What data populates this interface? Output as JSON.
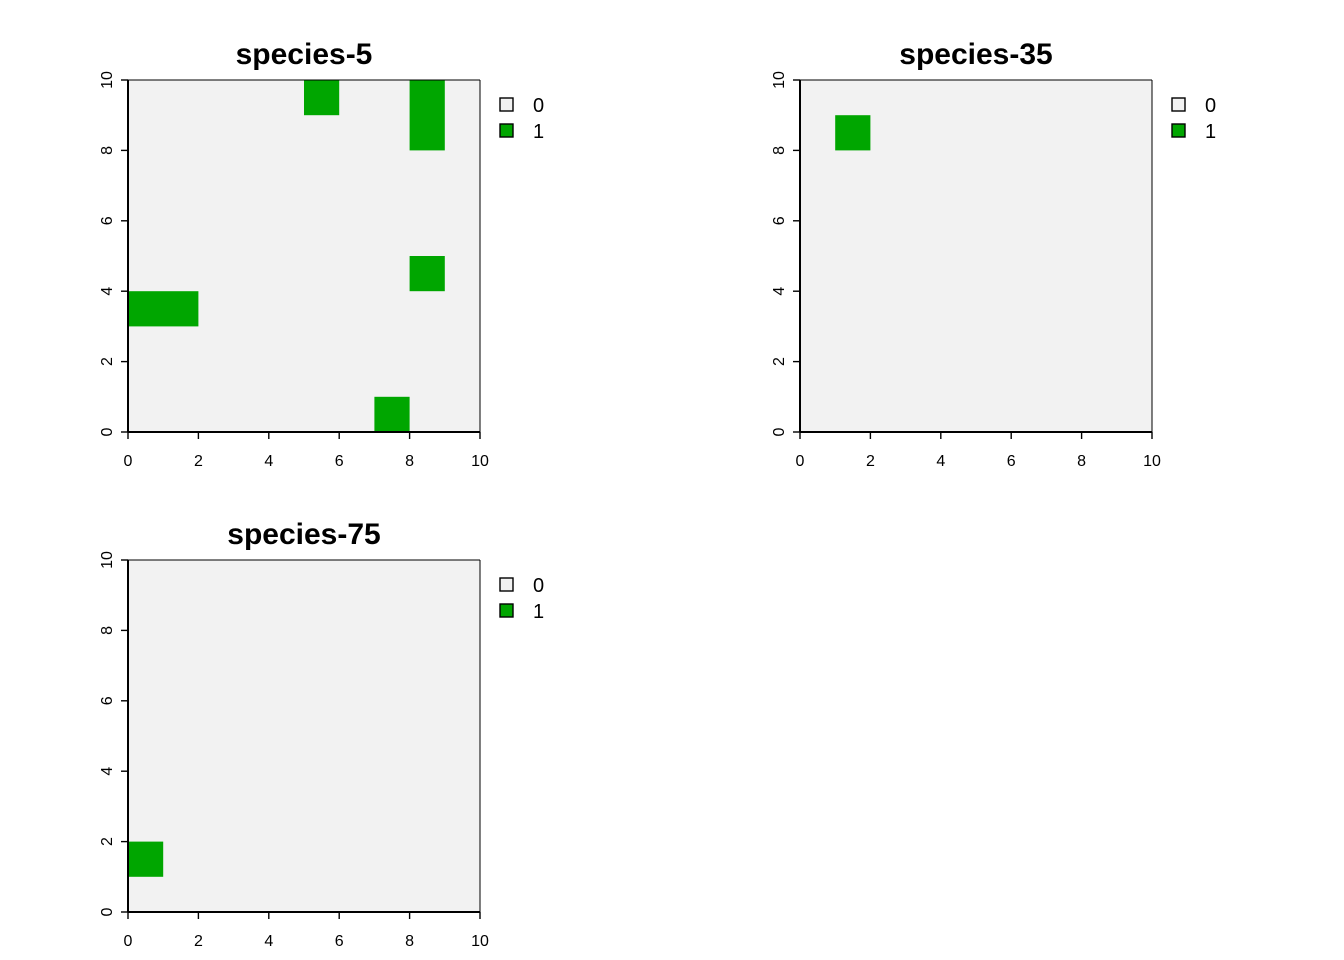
{
  "palette": {
    "absent": "#f2f2f2",
    "present": "#00a600",
    "panel_bg": "#f2f2f2"
  },
  "chart_data": [
    {
      "type": "heatmap",
      "title": "species-5",
      "xlim": [
        0,
        10
      ],
      "ylim": [
        0,
        10
      ],
      "x_ticks": [
        "0",
        "2",
        "4",
        "6",
        "8",
        "10"
      ],
      "y_ticks": [
        "0",
        "2",
        "4",
        "6",
        "8",
        "10"
      ],
      "legend": [
        {
          "label": "0",
          "color": "#f2f2f2"
        },
        {
          "label": "1",
          "color": "#00a600"
        }
      ],
      "presence_cells": [
        {
          "x0": 5,
          "y0": 9,
          "x1": 6,
          "y1": 10,
          "value": 1
        },
        {
          "x0": 8,
          "y0": 8,
          "x1": 9,
          "y1": 10,
          "value": 1
        },
        {
          "x0": 8,
          "y0": 4,
          "x1": 9,
          "y1": 5,
          "value": 1
        },
        {
          "x0": 0,
          "y0": 3,
          "x1": 2,
          "y1": 4,
          "value": 1
        },
        {
          "x0": 7,
          "y0": 0,
          "x1": 8,
          "y1": 1,
          "value": 1
        }
      ]
    },
    {
      "type": "heatmap",
      "title": "species-35",
      "xlim": [
        0,
        10
      ],
      "ylim": [
        0,
        10
      ],
      "x_ticks": [
        "0",
        "2",
        "4",
        "6",
        "8",
        "10"
      ],
      "y_ticks": [
        "0",
        "2",
        "4",
        "6",
        "8",
        "10"
      ],
      "legend": [
        {
          "label": "0",
          "color": "#f2f2f2"
        },
        {
          "label": "1",
          "color": "#00a600"
        }
      ],
      "presence_cells": [
        {
          "x0": 1,
          "y0": 8,
          "x1": 2,
          "y1": 9,
          "value": 1
        }
      ]
    },
    {
      "type": "heatmap",
      "title": "species-75",
      "xlim": [
        0,
        10
      ],
      "ylim": [
        0,
        10
      ],
      "x_ticks": [
        "0",
        "2",
        "4",
        "6",
        "8",
        "10"
      ],
      "y_ticks": [
        "0",
        "2",
        "4",
        "6",
        "8",
        "10"
      ],
      "legend": [
        {
          "label": "0",
          "color": "#f2f2f2"
        },
        {
          "label": "1",
          "color": "#00a600"
        }
      ],
      "presence_cells": [
        {
          "x0": 0,
          "y0": 1,
          "x1": 1,
          "y1": 2,
          "value": 1
        }
      ]
    }
  ]
}
